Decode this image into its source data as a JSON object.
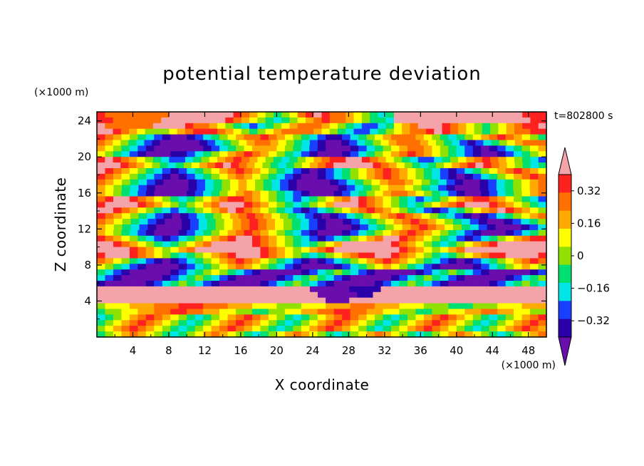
{
  "chart_data": {
    "type": "heatmap",
    "title": "potential temperature deviation",
    "xlabel": "X coordinate",
    "ylabel": "Z coordinate",
    "x_unit": "(×1000 m)",
    "y_unit": "(×1000 m)",
    "time_label": "t=802800 s",
    "xlim": [
      0,
      50
    ],
    "ylim": [
      0,
      25
    ],
    "x_ticks": [
      4,
      8,
      12,
      16,
      20,
      24,
      28,
      32,
      36,
      40,
      44,
      48
    ],
    "y_ticks": [
      4,
      8,
      12,
      16,
      20,
      24
    ],
    "colorbar": {
      "levels": [
        -0.4,
        -0.32,
        -0.24,
        -0.16,
        -0.08,
        0,
        0.08,
        0.16,
        0.24,
        0.32,
        0.4
      ],
      "labels": [
        "0.32",
        "0.16",
        "0",
        "−0.16",
        "−0.32"
      ],
      "label_values": [
        0.32,
        0.16,
        0,
        -0.16,
        -0.32
      ],
      "colors": [
        "#6a0dad",
        "#2a00a8",
        "#1a40ff",
        "#00e5e5",
        "#00e070",
        "#90e000",
        "#ffff00",
        "#ffaa00",
        "#ff7000",
        "#ff2020",
        "#f4a3a8"
      ],
      "extend": "both"
    },
    "field_rows": [
      "988888888ABAAAAAA9876545689A988765434AAAAAAAAAAAAAAAA999",
      "99888888ABBAAAAA987654345678988765443AAAAAAAAAAAAAAAAA99",
      "A888888AAAA98876543234567888765432234678AAA987654567899A",
      "AA9876555678999876545678888765432234567889A9876545678899",
      "9876543210012345678898765432112345678887654345678987654",
      "876543210000012345678876543210012345678887654321234567888",
      "7654321000000123456777654321000123456788765432101234567",
      "6543210001123456789876543210001234567898765432100123456",
      "9A98765432234567898765434567899AA98765432234567898765432",
      "AAA9876543456789A9876543456789AAAAA9876543456789A98765434",
      "A987654321234567898765432101234567898765432123456789876",
      "9876543210123456787654321001234567898765432101234567898",
      "876543210001234567654321000012345678876543210012345678",
      "765432100001234567654321000001234567765432100012345678",
      "7654321000012345678765432100012345678876543210012345678",
      "89AA987654345678998765432345678A98765432345678998765432",
      "9AAAA9876545678AAA98765434567AAA9876543456789AAA9876543",
      "AA98765432345678A98765432123456789876543212345678A98765",
      "987654321012345678987654321012345678987654321012345678",
      "87654321001234567898765432100123456789876543210012345",
      "76543210001234567898765432100012345678987654321000123",
      "7654321000123456789876543210001234567898765432100012345",
      "98765432123456789AA9876543212345678AA987654321234567899",
      "AA987654345678AAAAA98765434567AAAAAA9876543456789AAAAAA",
      "AAAA98765678AAAAAAAA987656789AAAAAAAA98765678AAAAAAAAAA",
      "9AAA9876543456789AAA98765434567899AA98765434567899AAAA9",
      "8765432101234567898765432101234567898765432101234567898",
      "6543210000123456787654321000012345676543210000123456765",
      "4321000001234565432100000123454321000001234543210000012",
      "3210000012345432100000123454321000001234543210000012345",
      "1000001234543210000012345432100000123454321000001234543",
      "AAAAAAAAAAAAAAAAAAAAAAAAAAA000001111AAAAAAAAAAAAAAAAAAAAA",
      "AAAAAAAAAAAAAAAAAAAAAAAAAAAA0000011AAAAAAAAAAAAAAAAAAAAAA",
      "AAAAAAAAAAAAAAAAAAAAAAAAAAAAA000AAAAAAAAAAAAAAAAAAAAAAAAA",
      "5666777888999888777666555666777888777666555444555666777",
      "4556677889988776655445566778899887766554455667788776655",
      "3456789876543456789876543456789876543456789876543456789",
      "4567898765434567898765434567898765434567898765434567898",
      "5678987654345678987654345678987654345678987654345678987",
      "4567876543456787654345678765434567876543456787654345678"
    ]
  }
}
